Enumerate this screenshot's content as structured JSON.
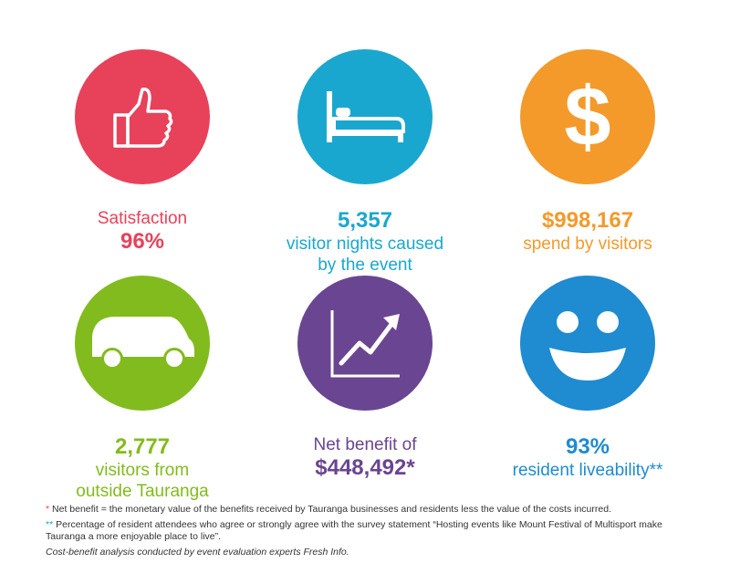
{
  "colors": {
    "red": "#e8415a",
    "teal": "#1aa7cf",
    "orange": "#f39a2b",
    "green": "#82bb1d",
    "purple": "#6a4592",
    "blue": "#1f8bd0"
  },
  "tiles": [
    {
      "icon": "thumbs-up-icon",
      "line1": "Satisfaction",
      "value": "96%"
    },
    {
      "icon": "bed-icon",
      "value": "5,357",
      "line1": "visitor nights caused",
      "line2": "by the event"
    },
    {
      "icon": "dollar-icon",
      "glyph": "$",
      "value": "$998,167",
      "line1": "spend by visitors"
    },
    {
      "icon": "car-icon",
      "value": "2,777",
      "line1": "visitors from",
      "line2": "outside Tauranga"
    },
    {
      "icon": "trend-chart-icon",
      "line1": "Net benefit of",
      "value": "$448,492*"
    },
    {
      "icon": "smiley-icon",
      "value": "93%",
      "line1": "resident liveability**"
    }
  ],
  "footnotes": {
    "star1": "*",
    "note1": "Net benefit = the monetary value of the benefits received by Tauranga businesses and residents less the value of the costs incurred.",
    "star2": "**",
    "note2": "Percentage of resident attendees who agree or strongly agree with the survey statement “Hosting events like Mount Festival of Multisport make Tauranga a more enjoyable place to live”.",
    "note3": "Cost-benefit analysis conducted by event evaluation experts Fresh Info."
  }
}
